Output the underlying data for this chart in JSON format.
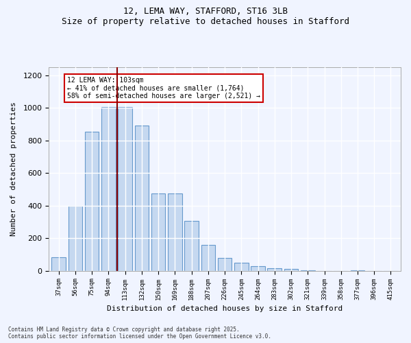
{
  "title_line1": "12, LEMA WAY, STAFFORD, ST16 3LB",
  "title_line2": "Size of property relative to detached houses in Stafford",
  "xlabel": "Distribution of detached houses by size in Stafford",
  "ylabel": "Number of detached properties",
  "categories": [
    "37sqm",
    "56sqm",
    "75sqm",
    "94sqm",
    "113sqm",
    "132sqm",
    "150sqm",
    "169sqm",
    "188sqm",
    "207sqm",
    "226sqm",
    "245sqm",
    "264sqm",
    "283sqm",
    "302sqm",
    "321sqm",
    "339sqm",
    "358sqm",
    "377sqm",
    "396sqm",
    "415sqm"
  ],
  "values": [
    85,
    400,
    855,
    1005,
    1005,
    890,
    475,
    475,
    305,
    305,
    160,
    160,
    80,
    80,
    50,
    50,
    30,
    30,
    15,
    15,
    10,
    10,
    5,
    5,
    0,
    0,
    0,
    0,
    5,
    5
  ],
  "bar_values": [
    85,
    400,
    855,
    1005,
    1005,
    890,
    475,
    475,
    305,
    160,
    80,
    50,
    30,
    15,
    10,
    5,
    0,
    0,
    5
  ],
  "bar_color": "#c5d8f0",
  "bar_edge_color": "#6699cc",
  "vline_x": 4,
  "vline_color": "#8b0000",
  "annotation_text": "12 LEMA WAY: 103sqm\n← 41% of detached houses are smaller (1,764)\n58% of semi-detached houses are larger (2,521) →",
  "annotation_box_color": "#ffffff",
  "annotation_box_edge": "#cc0000",
  "ylim": [
    0,
    1250
  ],
  "yticks": [
    0,
    200,
    400,
    600,
    800,
    1000,
    1200
  ],
  "background_color": "#f0f4ff",
  "grid_color": "#ffffff",
  "footer": "Contains HM Land Registry data © Crown copyright and database right 2025.\nContains public sector information licensed under the Open Government Licence v3.0.",
  "font_family": "monospace"
}
